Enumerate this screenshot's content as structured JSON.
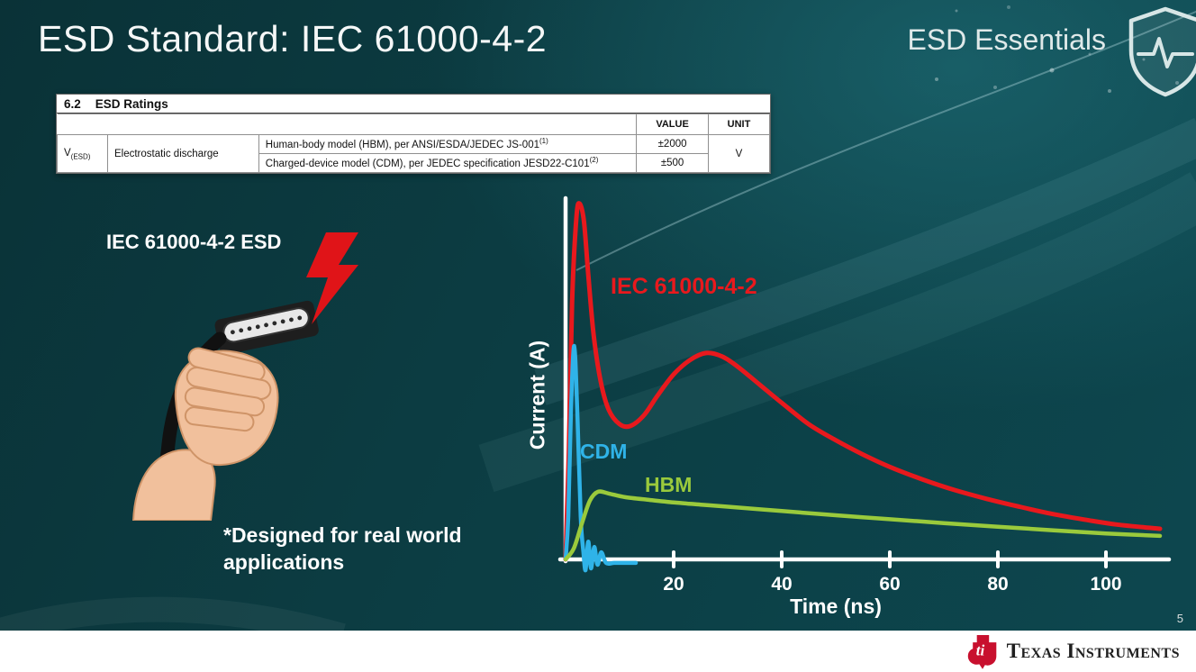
{
  "slide": {
    "title": "ESD Standard: IEC 61000-4-2",
    "series_brand": "ESD Essentials",
    "page_number": "5"
  },
  "ratings_table": {
    "section_number": "6.2",
    "section_title": "ESD Ratings",
    "columns": {
      "value": "VALUE",
      "unit": "UNIT"
    },
    "param": {
      "symbol": "V",
      "symbol_sub": "(ESD)",
      "name": "Electrostatic discharge"
    },
    "rows": [
      {
        "model": "Human-body model (HBM), per ANSI/ESDA/JEDEC JS-001",
        "footnote": "(1)",
        "value": "±2000"
      },
      {
        "model": "Charged-device model (CDM), per JEDEC specification JESD22-C101",
        "footnote": "(2)",
        "value": "±500"
      }
    ],
    "unit": "V"
  },
  "left_panel": {
    "esd_label": "IEC 61000-4-2 ESD",
    "note": "*Designed for real world applications"
  },
  "chart_data": {
    "type": "line",
    "title": "",
    "xlabel": "Time (ns)",
    "ylabel": "Current (A)",
    "x_ticks": [
      20,
      40,
      60,
      80,
      100
    ],
    "xlim": [
      0,
      112
    ],
    "ylim": [
      0,
      100
    ],
    "grid": false,
    "legend_position": "inline-labels",
    "y_scale_note": "y-axis has no tick labels; values are relative amplitude (% of IEC 61000-4-2 first peak)",
    "series": [
      {
        "name": "IEC 61000-4-2",
        "color": "#e8191d",
        "points": [
          [
            0,
            0
          ],
          [
            0.6,
            30
          ],
          [
            1.2,
            72
          ],
          [
            2,
            96
          ],
          [
            2.6,
            100
          ],
          [
            3.4,
            95
          ],
          [
            4.2,
            80
          ],
          [
            5.2,
            63
          ],
          [
            6.5,
            50
          ],
          [
            8,
            42
          ],
          [
            10,
            38
          ],
          [
            12,
            37.5
          ],
          [
            14.5,
            40.5
          ],
          [
            17,
            46
          ],
          [
            20,
            52
          ],
          [
            23,
            56
          ],
          [
            26,
            58
          ],
          [
            29,
            57
          ],
          [
            32,
            54
          ],
          [
            36,
            49
          ],
          [
            40,
            44
          ],
          [
            45,
            38
          ],
          [
            50,
            33.5
          ],
          [
            55,
            29.5
          ],
          [
            60,
            26
          ],
          [
            66,
            22.5
          ],
          [
            72,
            19.5
          ],
          [
            78,
            17
          ],
          [
            84,
            14.8
          ],
          [
            90,
            12.8
          ],
          [
            96,
            11.2
          ],
          [
            102,
            9.8
          ],
          [
            110,
            8.6
          ]
        ]
      },
      {
        "name": "CDM",
        "color": "#2fb3e8",
        "points": [
          [
            0,
            0
          ],
          [
            0.5,
            12
          ],
          [
            1,
            42
          ],
          [
            1.6,
            60
          ],
          [
            2.2,
            40
          ],
          [
            2.8,
            12
          ],
          [
            3.3,
            2
          ],
          [
            3.7,
            -3
          ],
          [
            4.2,
            5
          ],
          [
            4.7,
            -2.5
          ],
          [
            5.3,
            3.5
          ],
          [
            5.9,
            -1.5
          ],
          [
            6.6,
            2
          ],
          [
            7.5,
            -1
          ],
          [
            9,
            -1
          ],
          [
            11,
            -1
          ],
          [
            13,
            -1
          ]
        ]
      },
      {
        "name": "HBM",
        "color": "#9aca3c",
        "points": [
          [
            0,
            0
          ],
          [
            1.5,
            3
          ],
          [
            3,
            10
          ],
          [
            4.5,
            16.5
          ],
          [
            6,
            19
          ],
          [
            8,
            18.5
          ],
          [
            11,
            17.5
          ],
          [
            15,
            16.8
          ],
          [
            20,
            16
          ],
          [
            25,
            15.4
          ],
          [
            30,
            14.8
          ],
          [
            40,
            13.6
          ],
          [
            50,
            12.4
          ],
          [
            60,
            11.3
          ],
          [
            70,
            10.2
          ],
          [
            80,
            9.2
          ],
          [
            90,
            8.2
          ],
          [
            100,
            7.3
          ],
          [
            110,
            6.6
          ]
        ]
      }
    ]
  },
  "footer": {
    "logo_text": "Texas Instruments"
  }
}
